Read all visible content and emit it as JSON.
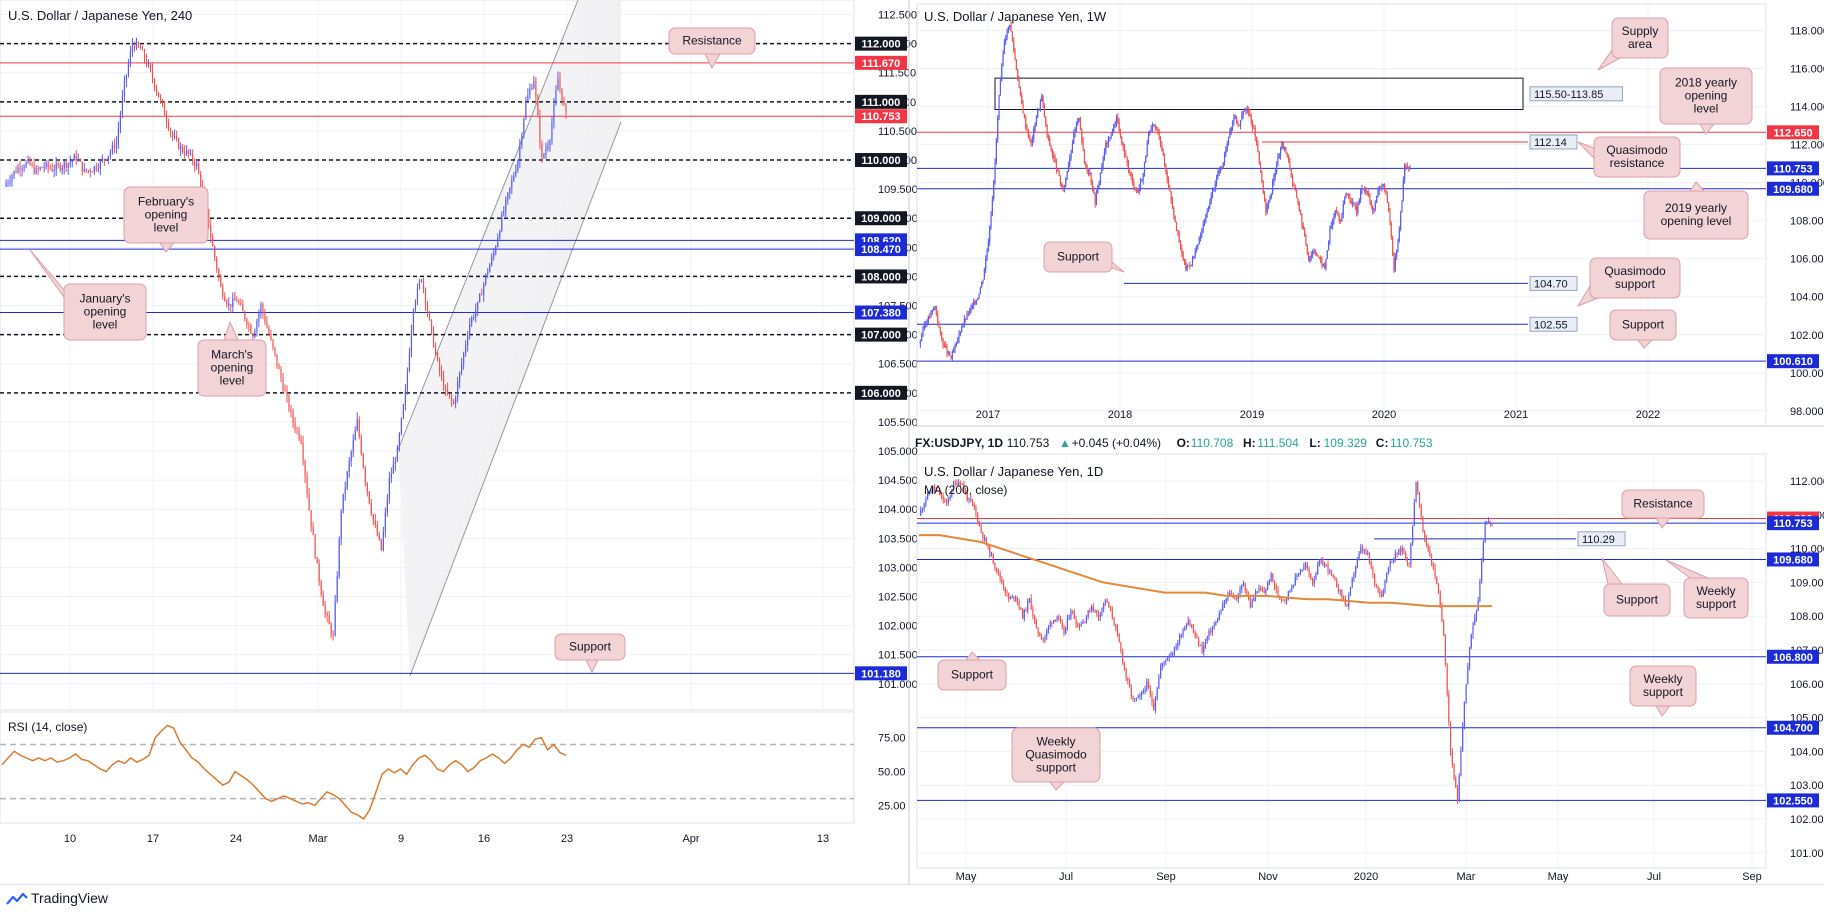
{
  "app": {
    "brand": "TradingView"
  },
  "chart_data": [
    {
      "id": "h4",
      "type": "candlestick",
      "title": "U.S. Dollar / Japanese Yen, 240",
      "xlabel": "",
      "ylabel": "",
      "ylim": [
        100.55,
        112.75
      ],
      "y_ticks": [
        "112.500",
        "112.000",
        "111.500",
        "111.000",
        "110.500",
        "110.000",
        "109.500",
        "109.000",
        "108.500",
        "108.000",
        "107.500",
        "107.000",
        "106.500",
        "106.000",
        "105.500",
        "105.000",
        "104.500",
        "104.000",
        "103.500",
        "103.000",
        "102.500",
        "102.000",
        "101.500",
        "101.000"
      ],
      "x_ticks": [
        "10",
        "17",
        "24",
        "Mar",
        "9",
        "16",
        "23",
        "Apr",
        "13"
      ],
      "price_tags": [
        {
          "value": 112.0,
          "label": "112.000",
          "style": "black"
        },
        {
          "value": 111.67,
          "label": "111.670",
          "style": "red"
        },
        {
          "value": 111.0,
          "label": "111.000",
          "style": "black"
        },
        {
          "value": 110.753,
          "label": "110.753",
          "style": "red"
        },
        {
          "value": 110.0,
          "label": "110.000",
          "style": "black"
        },
        {
          "value": 109.0,
          "label": "109.000",
          "style": "black"
        },
        {
          "value": 108.62,
          "label": "108.620",
          "style": "blue"
        },
        {
          "value": 108.47,
          "label": "108.470",
          "style": "blue"
        },
        {
          "value": 108.0,
          "label": "108.000",
          "style": "black"
        },
        {
          "value": 107.38,
          "label": "107.380",
          "style": "blue"
        },
        {
          "value": 107.0,
          "label": "107.000",
          "style": "black"
        },
        {
          "value": 106.0,
          "label": "106.000",
          "style": "black"
        },
        {
          "value": 101.18,
          "label": "101.180",
          "style": "blue"
        }
      ],
      "annotations": [
        {
          "id": "resistance",
          "text": "Resistance"
        },
        {
          "id": "february-opening",
          "text": "February's opening level"
        },
        {
          "id": "january-opening",
          "text": "January's opening level"
        },
        {
          "id": "march-opening",
          "text": "March's opening level"
        },
        {
          "id": "support",
          "text": "Support"
        }
      ],
      "channel": "ascending channel from the Mar 9 low",
      "series_path": [
        109.55,
        109.75,
        109.9,
        109.95,
        109.8,
        109.9,
        109.85,
        109.9,
        109.95,
        110.05,
        109.8,
        109.85,
        109.95,
        110.1,
        110.3,
        111.3,
        112.0,
        111.9,
        111.6,
        111.2,
        110.8,
        110.4,
        110.2,
        110.1,
        109.9,
        109.3,
        108.5,
        107.8,
        107.5,
        107.6,
        107.3,
        107.0,
        107.5,
        107.0,
        106.5,
        106.0,
        105.5,
        105.2,
        104.0,
        103.0,
        102.2,
        101.8,
        104.0,
        104.8,
        105.5,
        104.5,
        103.8,
        103.3,
        104.5,
        105.0,
        106.0,
        107.5,
        108.0,
        107.2,
        106.5,
        106.0,
        105.8,
        106.5,
        107.2,
        107.5,
        108.0,
        108.4,
        109.0,
        109.5,
        110.0,
        111.0,
        111.4,
        110.0,
        110.4,
        111.4,
        110.75
      ],
      "rsi": {
        "title": "RSI (14, close)",
        "ylim": [
          12,
          94
        ],
        "y_ticks": [
          "75.00",
          "50.00",
          "25.00"
        ],
        "levels": [
          70,
          30
        ],
        "values": [
          55,
          60,
          65,
          62,
          60,
          58,
          60,
          58,
          60,
          57,
          58,
          60,
          63,
          59,
          58,
          55,
          52,
          50,
          55,
          58,
          56,
          60,
          57,
          59,
          62,
          75,
          80,
          84,
          82,
          72,
          66,
          60,
          57,
          52,
          48,
          44,
          40,
          42,
          50,
          47,
          44,
          40,
          35,
          30,
          28,
          30,
          32,
          30,
          28,
          26,
          27,
          25,
          30,
          35,
          33,
          30,
          25,
          20,
          18,
          15,
          22,
          35,
          48,
          52,
          49,
          52,
          48,
          55,
          60,
          62,
          58,
          52,
          50,
          55,
          58,
          55,
          50,
          53,
          58,
          60,
          63,
          60,
          56,
          60,
          66,
          70,
          68,
          74,
          75,
          66,
          70,
          64,
          62
        ]
      }
    },
    {
      "id": "w1",
      "type": "candlestick",
      "title": "U.S. Dollar / Japanese Yen, 1W",
      "xlabel": "",
      "ylabel": "",
      "ylim": [
        97.2,
        119.4
      ],
      "y_ticks": [
        "118.000",
        "116.000",
        "114.000",
        "112.000",
        "110.000",
        "108.000",
        "106.000",
        "104.000",
        "102.000",
        "100.000",
        "98.000"
      ],
      "x_ticks": [
        "2017",
        "2018",
        "2019",
        "2020",
        "2021",
        "2022"
      ],
      "price_tags": [
        {
          "value": 112.65,
          "label": "112.650",
          "style": "red"
        },
        {
          "value": 110.753,
          "label": "110.753",
          "style": "blue"
        },
        {
          "value": 109.68,
          "label": "109.680",
          "style": "blue"
        },
        {
          "value": 100.61,
          "label": "100.610",
          "style": "blue"
        }
      ],
      "level_labels": [
        {
          "value": 114.675,
          "label": "115.50-113.85"
        },
        {
          "value": 112.14,
          "label": "112.14"
        },
        {
          "value": 104.7,
          "label": "104.70"
        },
        {
          "value": 102.55,
          "label": "102.55"
        }
      ],
      "zones": [
        {
          "from": 113.85,
          "to": 115.5,
          "label": "115.50-113.85"
        }
      ],
      "annotations": [
        {
          "id": "supply-area",
          "text": "Supply area"
        },
        {
          "id": "yearly-2018",
          "text": "2018 yearly opening level"
        },
        {
          "id": "quasimodo-resistance",
          "text": "Quasimodo resistance"
        },
        {
          "id": "yearly-2019",
          "text": "2019 yearly opening level"
        },
        {
          "id": "support-left",
          "text": "Support"
        },
        {
          "id": "quasimodo-support",
          "text": "Quasimodo support"
        },
        {
          "id": "support-right",
          "text": "Support"
        }
      ],
      "series_path": [
        101.5,
        102.5,
        103.0,
        103.5,
        102.0,
        101.2,
        100.8,
        101.5,
        102.5,
        103.0,
        103.5,
        104.0,
        105.0,
        107.0,
        110.0,
        114.5,
        117.5,
        118.4,
        116.5,
        114.5,
        113.0,
        112.0,
        113.5,
        114.5,
        112.5,
        111.5,
        110.5,
        109.5,
        111.0,
        112.5,
        113.5,
        111.0,
        110.5,
        109.0,
        110.5,
        112.0,
        112.5,
        113.5,
        112.0,
        111.0,
        110.0,
        109.5,
        110.5,
        112.5,
        113.0,
        112.5,
        111.0,
        109.5,
        108.0,
        106.5,
        105.5,
        105.8,
        106.5,
        107.5,
        108.5,
        109.5,
        110.5,
        111.0,
        112.5,
        113.5,
        113.0,
        114.0,
        113.5,
        112.5,
        110.5,
        108.5,
        109.5,
        111.0,
        112.0,
        111.5,
        110.0,
        109.0,
        107.5,
        106.0,
        106.5,
        106.0,
        105.5,
        107.5,
        108.5,
        108.0,
        109.5,
        109.0,
        108.5,
        109.8,
        109.5,
        108.5,
        109.5,
        110.0,
        108.5,
        105.5,
        107.5,
        110.9,
        110.75
      ]
    },
    {
      "id": "d1",
      "type": "candlestick",
      "title": "U.S. Dollar / Japanese Yen, 1D",
      "symbol_line": {
        "symbol": "FX:USDJPY, 1D",
        "last": "110.753",
        "change": "+0.045 (+0.04%)",
        "o_label": "O:",
        "o": "110.708",
        "h_label": "H:",
        "h": "111.504",
        "l_label": "L:",
        "l": "109.329",
        "c_label": "C:",
        "c": "110.753"
      },
      "ma_label": "MA (200, close)",
      "xlabel": "",
      "ylabel": "",
      "ylim": [
        100.55,
        112.8
      ],
      "y_ticks": [
        "112.000",
        "111.000",
        "110.000",
        "109.000",
        "108.000",
        "107.000",
        "106.000",
        "105.000",
        "104.000",
        "103.000",
        "102.000",
        "101.000"
      ],
      "x_ticks": [
        "May",
        "Jul",
        "Sep",
        "Nov",
        "2020",
        "Mar",
        "May",
        "Jul",
        "Sep"
      ],
      "price_tags": [
        {
          "value": 110.89,
          "label": "110.890",
          "style": "red"
        },
        {
          "value": 110.753,
          "label": "110.753",
          "style": "blue"
        },
        {
          "value": 109.68,
          "label": "109.680",
          "style": "blue"
        },
        {
          "value": 106.8,
          "label": "106.800",
          "style": "blue"
        },
        {
          "value": 104.7,
          "label": "104.700",
          "style": "blue"
        },
        {
          "value": 102.55,
          "label": "102.550",
          "style": "blue"
        }
      ],
      "level_labels": [
        {
          "value": 110.29,
          "label": "110.29"
        }
      ],
      "annotations": [
        {
          "id": "resistance",
          "text": "Resistance"
        },
        {
          "id": "support-mid",
          "text": "Support"
        },
        {
          "id": "weekly-support-top",
          "text": "Weekly support"
        },
        {
          "id": "support-left",
          "text": "Support"
        },
        {
          "id": "weekly-support-bottom",
          "text": "Weekly support"
        },
        {
          "id": "weekly-quasimodo",
          "text": "Weekly Quasimodo support"
        }
      ],
      "series_path": [
        111.0,
        111.5,
        111.8,
        111.6,
        111.3,
        111.9,
        112.0,
        111.5,
        111.2,
        110.5,
        110.0,
        109.5,
        109.0,
        108.5,
        108.6,
        108.0,
        108.5,
        107.6,
        107.3,
        107.8,
        108.0,
        107.5,
        108.2,
        107.7,
        107.9,
        108.3,
        108.0,
        108.5,
        108.0,
        107.2,
        106.2,
        105.5,
        105.6,
        106.0,
        105.3,
        106.5,
        106.8,
        107.0,
        107.5,
        107.9,
        107.4,
        107.0,
        107.5,
        107.8,
        108.3,
        108.7,
        108.5,
        109.0,
        108.3,
        108.8,
        108.7,
        109.2,
        108.6,
        108.5,
        108.9,
        109.3,
        109.5,
        109.0,
        109.6,
        109.5,
        109.1,
        108.7,
        108.3,
        109.3,
        110.0,
        109.8,
        109.0,
        108.6,
        109.5,
        109.8,
        110.0,
        109.5,
        112.0,
        110.5,
        109.8,
        109.0,
        107.5,
        104.0,
        102.5,
        105.5,
        107.5,
        108.5,
        110.8,
        110.75
      ],
      "ma_path": [
        110.4,
        110.4,
        110.3,
        110.2,
        110.0,
        109.8,
        109.6,
        109.4,
        109.2,
        109.0,
        108.9,
        108.8,
        108.7,
        108.7,
        108.7,
        108.6,
        108.6,
        108.6,
        108.55,
        108.5,
        108.5,
        108.45,
        108.4,
        108.4,
        108.35,
        108.3,
        108.3,
        108.3,
        108.3
      ]
    }
  ]
}
